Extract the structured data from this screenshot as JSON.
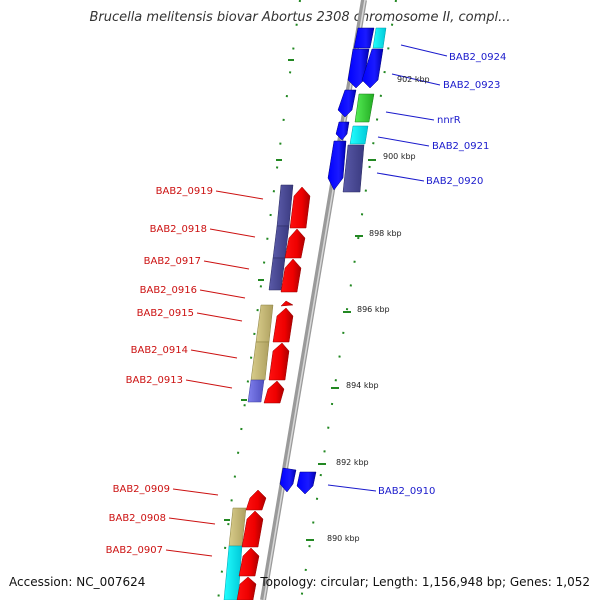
{
  "title": "Brucella melitensis biovar Abortus 2308 chromosome II, compl...",
  "accession": "Accession: NC_007624",
  "topology": "Topology: circular; Length: 1,156,948 bp; Genes: 1,052",
  "kbp_labels": [
    "902 kbp",
    "900 kbp",
    "898 kbp",
    "896 kbp",
    "894 kbp",
    "892 kbp",
    "890 kbp"
  ],
  "genes_right": [
    "BAB2_0924",
    "BAB2_0923",
    "nnrR",
    "BAB2_0921",
    "BAB2_0920",
    "BAB2_0910"
  ],
  "genes_left": [
    "BAB2_0919",
    "BAB2_0918",
    "BAB2_0917",
    "BAB2_0916",
    "BAB2_0915",
    "BAB2_0914",
    "BAB2_0913",
    "BAB2_0909",
    "BAB2_0908",
    "BAB2_0907"
  ],
  "colors": {
    "forward_label": "#1a1acc",
    "reverse_label": "#cc1111",
    "tick": "#228822",
    "backbone": "#9a9a9a"
  }
}
